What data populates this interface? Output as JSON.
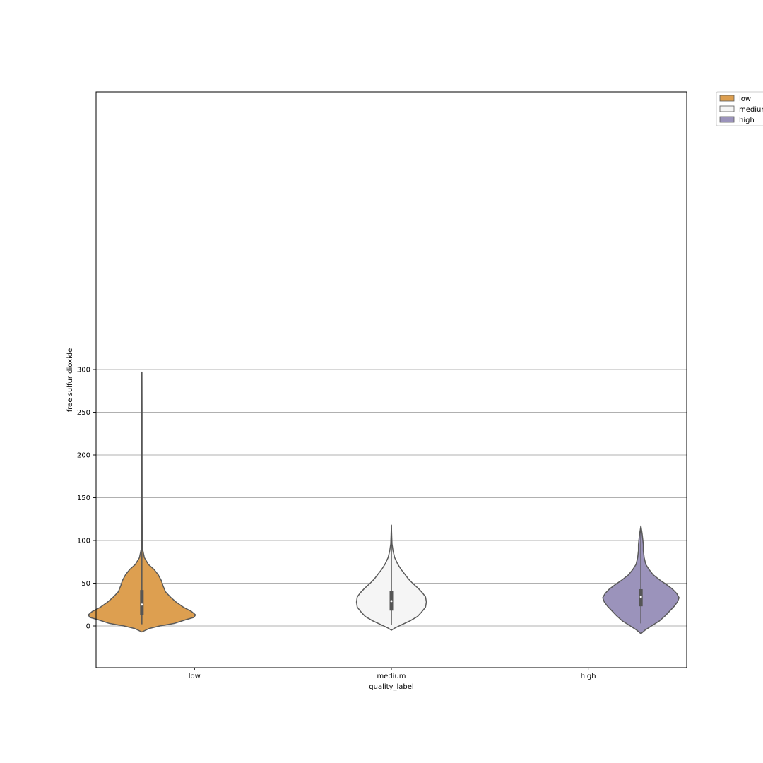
{
  "chart_data": {
    "type": "violin",
    "xlabel": "quality_label",
    "ylabel": "free sulfur dioxide",
    "categories": [
      "low",
      "medium",
      "high"
    ],
    "ylim": [
      -24,
      312
    ],
    "yticks": [
      0,
      50,
      100,
      150,
      200,
      250,
      300
    ],
    "grid": "y",
    "legend": {
      "placement": "outside top-right",
      "entries": [
        "low",
        "medium",
        "high"
      ]
    },
    "series": [
      {
        "name": "low",
        "category": "low",
        "hue_offset": -1,
        "color": "#dd9f50",
        "min": 2,
        "q1": 13,
        "median": 25,
        "q3": 42,
        "max": 297,
        "kde_min": -7,
        "kde_max": 297,
        "profile": [
          [
            -7,
            0.0
          ],
          [
            -3,
            0.9
          ],
          [
            0,
            2.2
          ],
          [
            3,
            4.0
          ],
          [
            7,
            5.3
          ],
          [
            10,
            6.4
          ],
          [
            13,
            6.6
          ],
          [
            17,
            6.1
          ],
          [
            22,
            5.1
          ],
          [
            28,
            4.2
          ],
          [
            33,
            3.6
          ],
          [
            40,
            2.9
          ],
          [
            47,
            2.6
          ],
          [
            53,
            2.4
          ],
          [
            60,
            2.0
          ],
          [
            66,
            1.5
          ],
          [
            72,
            0.8
          ],
          [
            80,
            0.3
          ],
          [
            90,
            0.08
          ],
          [
            100,
            0.04
          ],
          [
            150,
            0.02
          ],
          [
            200,
            0.015
          ],
          [
            250,
            0.012
          ],
          [
            297,
            0.0
          ]
        ]
      },
      {
        "name": "medium",
        "category": "medium",
        "hue_offset": 0,
        "color": "#f5f5f5",
        "min": 1,
        "q1": 18,
        "median": 29,
        "q3": 41,
        "max": 118,
        "kde_min": -5,
        "kde_max": 118,
        "profile": [
          [
            -5,
            0.0
          ],
          [
            -2,
            0.5
          ],
          [
            2,
            1.4
          ],
          [
            6,
            2.3
          ],
          [
            11,
            3.2
          ],
          [
            16,
            3.7
          ],
          [
            22,
            4.2
          ],
          [
            28,
            4.3
          ],
          [
            34,
            4.2
          ],
          [
            39,
            3.8
          ],
          [
            44,
            3.3
          ],
          [
            50,
            2.6
          ],
          [
            55,
            2.1
          ],
          [
            60,
            1.7
          ],
          [
            66,
            1.2
          ],
          [
            72,
            0.8
          ],
          [
            80,
            0.4
          ],
          [
            88,
            0.2
          ],
          [
            96,
            0.08
          ],
          [
            105,
            0.04
          ],
          [
            118,
            0.0
          ]
        ]
      },
      {
        "name": "high",
        "category": "high",
        "hue_offset": 1,
        "color": "#9b93bb",
        "min": 3,
        "q1": 23,
        "median": 34,
        "q3": 43,
        "max": 117,
        "kde_min": -9,
        "kde_max": 117,
        "profile": [
          [
            -9,
            0.0
          ],
          [
            -5,
            0.5
          ],
          [
            0,
            1.3
          ],
          [
            6,
            2.3
          ],
          [
            12,
            3.0
          ],
          [
            18,
            3.6
          ],
          [
            23,
            4.1
          ],
          [
            28,
            4.5
          ],
          [
            33,
            4.7
          ],
          [
            38,
            4.4
          ],
          [
            43,
            3.9
          ],
          [
            48,
            3.2
          ],
          [
            54,
            2.3
          ],
          [
            60,
            1.5
          ],
          [
            66,
            1.0
          ],
          [
            72,
            0.6
          ],
          [
            80,
            0.4
          ],
          [
            88,
            0.3
          ],
          [
            95,
            0.3
          ],
          [
            100,
            0.25
          ],
          [
            108,
            0.15
          ],
          [
            117,
            0.0
          ]
        ]
      }
    ]
  }
}
